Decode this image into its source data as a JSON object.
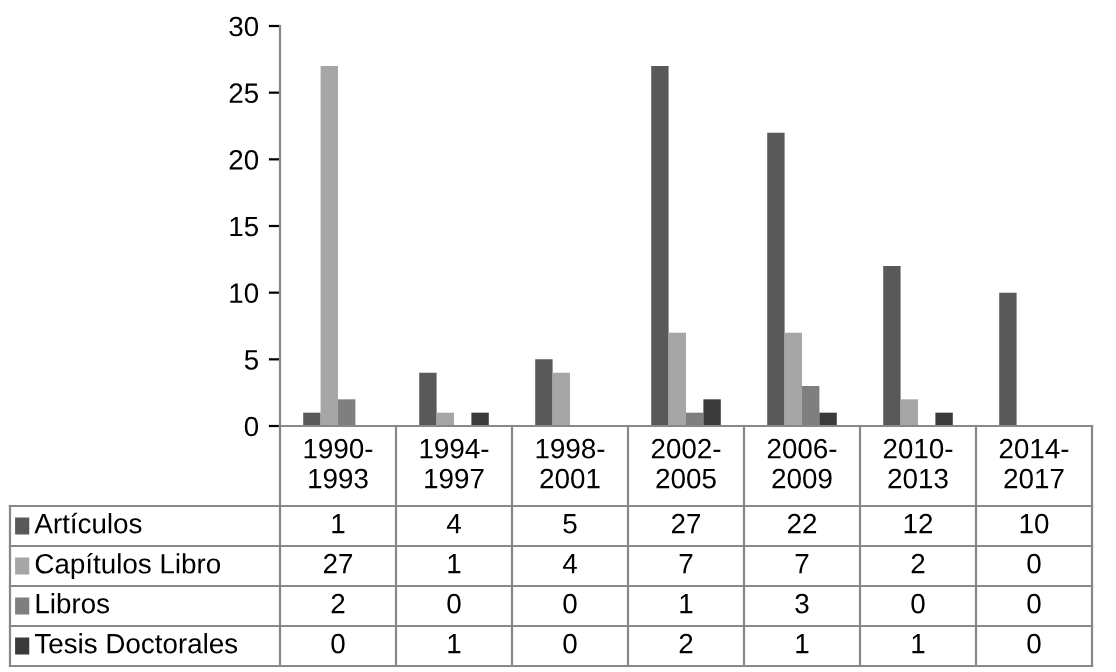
{
  "chart_data": {
    "type": "bar",
    "categories": [
      "1990-1993",
      "1994-1997",
      "1998-2001",
      "2002-2005",
      "2006-2009",
      "2010-2013",
      "2014-2017"
    ],
    "series": [
      {
        "name": "Artículos",
        "color": "#595959",
        "values": [
          1,
          4,
          5,
          27,
          22,
          12,
          10
        ]
      },
      {
        "name": "Capítulos Libro",
        "color": "#a6a6a6",
        "values": [
          27,
          1,
          4,
          7,
          7,
          2,
          0
        ]
      },
      {
        "name": "Libros",
        "color": "#7f7f7f",
        "values": [
          2,
          0,
          0,
          1,
          3,
          0,
          0
        ]
      },
      {
        "name": "Tesis Doctorales",
        "color": "#3a3a3a",
        "values": [
          0,
          1,
          0,
          2,
          1,
          1,
          0
        ]
      }
    ],
    "ylim": [
      0,
      30
    ],
    "yticks": [
      0,
      5,
      10,
      15,
      20,
      25,
      30
    ],
    "grid": false,
    "legend": "bottom",
    "data_labels": true
  }
}
